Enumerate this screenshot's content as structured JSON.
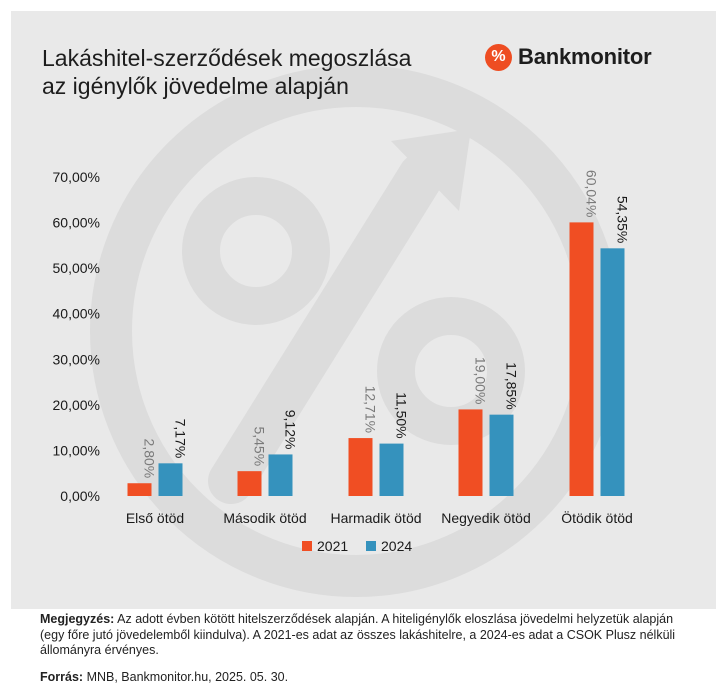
{
  "title": {
    "line1": "Lakáshitel-szerződések megoszlása",
    "line2": "az igénylők jövedelme alapján"
  },
  "logo": {
    "text": "Bankmonitor",
    "icon": "percent-icon",
    "color": "#ee4d22"
  },
  "chart_data": {
    "type": "bar",
    "categories": [
      "Első ötöd",
      "Második ötöd",
      "Harmadik ötöd",
      "Negyedik ötöd",
      "Ötödik ötöd"
    ],
    "series": [
      {
        "name": "2021",
        "values": [
          2.8,
          5.45,
          12.71,
          19.0,
          60.04
        ],
        "labels": [
          "2,80%",
          "5,45%",
          "12,71%",
          "19,00%",
          "60,04%"
        ],
        "color": "#f04e23",
        "label_color": "#7a7a7a"
      },
      {
        "name": "2024",
        "values": [
          7.17,
          9.12,
          11.5,
          17.85,
          54.35
        ],
        "labels": [
          "7,17%",
          "9,12%",
          "11,50%",
          "17,85%",
          "54,35%"
        ],
        "color": "#3592bd",
        "label_color": "#1a1a1a"
      }
    ],
    "y_ticks": [
      "0,00%",
      "10,00%",
      "20,00%",
      "30,00%",
      "40,00%",
      "50,00%",
      "60,00%",
      "70,00%"
    ],
    "ylim": [
      0,
      70
    ],
    "grid": false,
    "legend_position": "bottom"
  },
  "note": {
    "label": "Megjegyzés:",
    "text": "Az adott évben kötött hitelszerződések alapján. A hiteligénylők eloszlása jövedelmi helyzetük alapján (egy főre jutó jövedelemből kiindulva). A 2021-es adat az összes lakáshitelre, a 2024-es adat a CSOK Plusz nélküli állományra érvényes."
  },
  "source": {
    "label": "Forrás:",
    "text": "MNB, Bankmonitor.hu, 2025. 05. 30."
  }
}
